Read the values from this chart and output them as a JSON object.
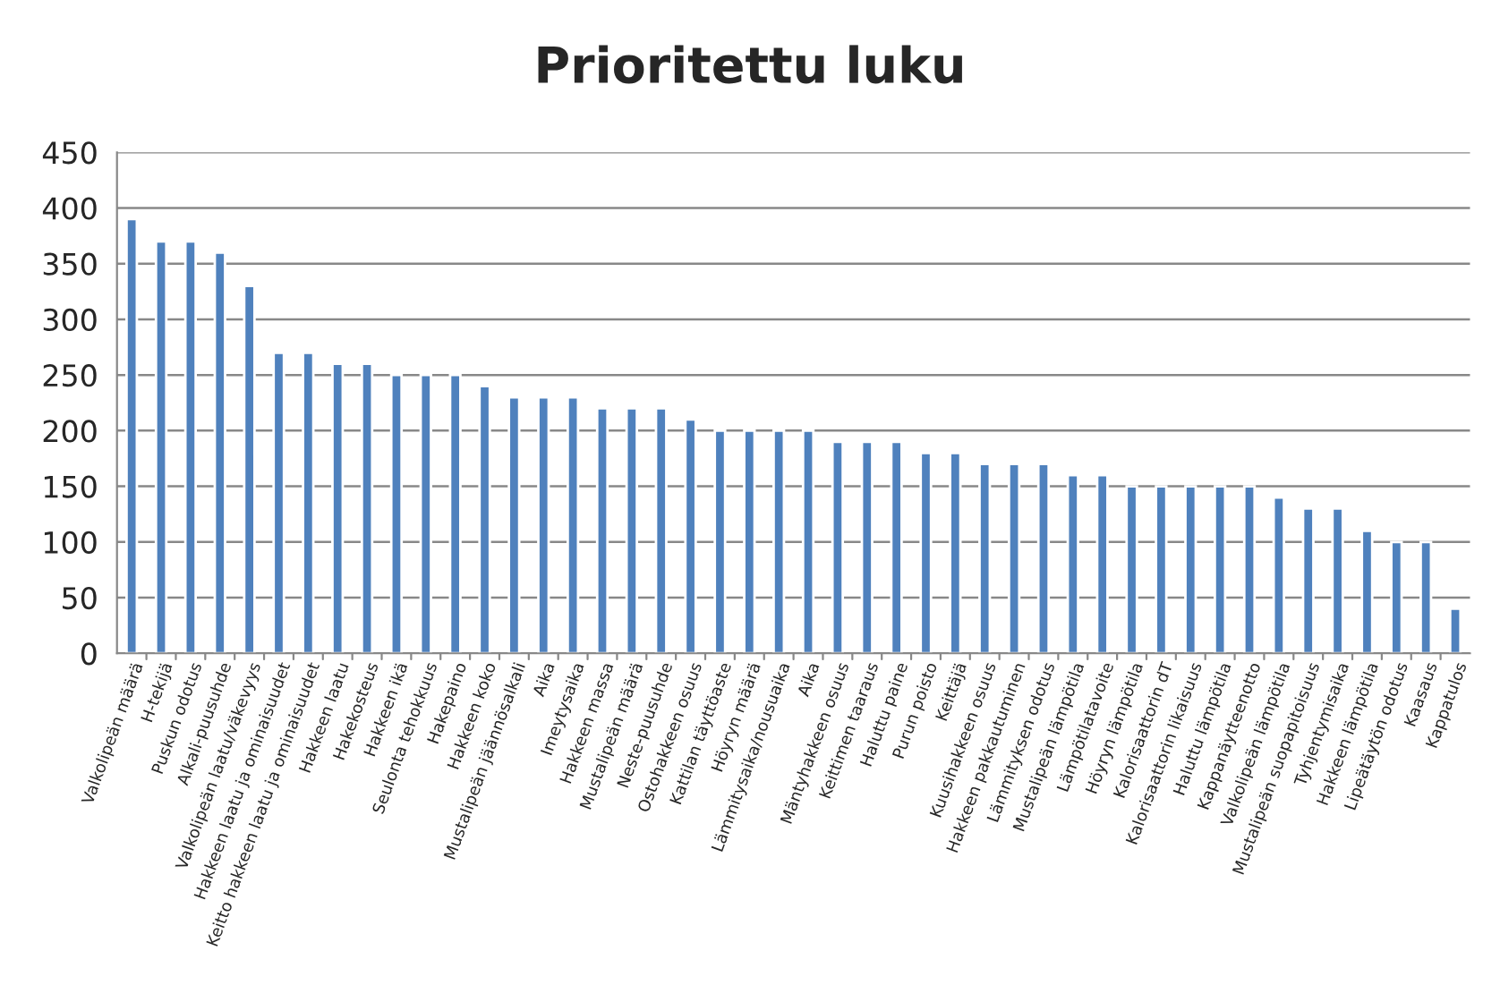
{
  "chart_data": {
    "type": "bar",
    "title": "Prioritettu luku",
    "categories": [
      "Valkolipeän määrä",
      "H-tekijä",
      "Puskun odotus",
      "Alkali-puusuhde",
      "Valkolipeän laatu/väkevyys",
      "Hakkeen laatu ja ominaisuudet",
      "Keitto hakkeen laatu ja ominaisuudet",
      "Hakkeen laatu",
      "Hakekosteus",
      "Hakkeen ikä",
      "Seulonta tehokkuus",
      "Hakepaino",
      "Hakkeen koko",
      "Mustalipeän jäännösalkali",
      "Aika",
      "Imeytysaika",
      "Hakkeen massa",
      "Mustalipeän määrä",
      "Neste-puusuhde",
      "Ostohakkeen osuus",
      "Kattilan täyttöaste",
      "Höyryn määrä",
      "Lämmitysaika/nousuaika",
      "Aika",
      "Mäntyhakkeen osuus",
      "Keittimen taaraus",
      "Haluttu paine",
      "Purun poisto",
      "Keittäjä",
      "Kuusihakkeen osuus",
      "Hakkeen pakkautuminen",
      "Lämmityksen odotus",
      "Mustalipeän lämpötila",
      "Lämpötilatavoite",
      "Höyryn lämpötila",
      "Kalorisaattorin dT",
      "Kalorisaattorin likaisuus",
      "Haluttu lämpötila",
      "Kappanäytteenotto",
      "Valkolipeän lämpötila",
      "Mustalipeän suopapitoisuus",
      "Tyhjentymisaika",
      "Hakkeen lämpötila",
      "Lipeätäytön odotus",
      "Kaasaus",
      "Kappatulos"
    ],
    "values": [
      390,
      370,
      370,
      360,
      330,
      270,
      270,
      260,
      260,
      250,
      250,
      250,
      240,
      230,
      230,
      230,
      220,
      220,
      220,
      210,
      200,
      200,
      200,
      200,
      190,
      190,
      190,
      180,
      180,
      170,
      170,
      170,
      160,
      160,
      150,
      150,
      150,
      150,
      150,
      140,
      130,
      130,
      110,
      100,
      100,
      40
    ],
    "color": "#4f81bd",
    "ylim": [
      0,
      450
    ],
    "yticks": [
      0,
      50,
      100,
      150,
      200,
      250,
      300,
      350,
      400,
      450
    ],
    "grid": "y",
    "legend": false
  }
}
